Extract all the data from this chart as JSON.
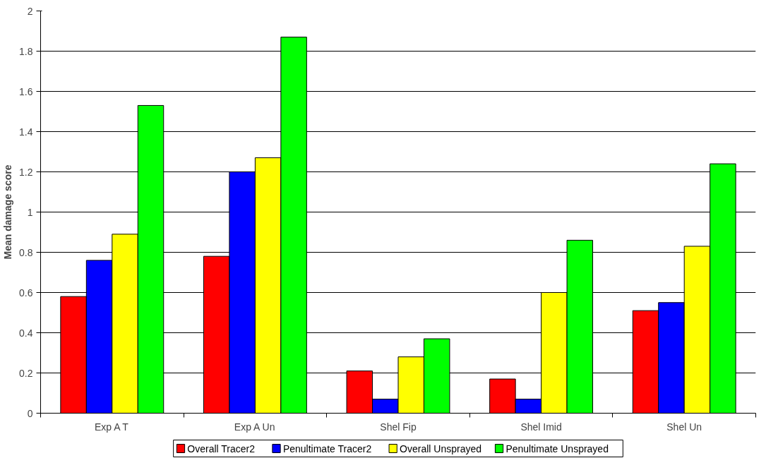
{
  "chart_data": {
    "type": "bar",
    "ylabel": "Mean damage score",
    "categories": [
      "Exp A T",
      "Exp A Un",
      "Shel Fip",
      "Shel Imid",
      "Shel Un"
    ],
    "series": [
      {
        "name": "Overall Tracer2",
        "color": "#ff0000",
        "values": [
          0.58,
          0.78,
          0.21,
          0.17,
          0.51
        ]
      },
      {
        "name": "Penultimate Tracer2",
        "color": "#0000ff",
        "values": [
          0.76,
          1.2,
          0.07,
          0.07,
          0.55
        ]
      },
      {
        "name": "Overall Unsprayed",
        "color": "#ffff00",
        "values": [
          0.89,
          1.27,
          0.28,
          0.6,
          0.83
        ]
      },
      {
        "name": "Penultimate Unsprayed",
        "color": "#00ff00",
        "values": [
          1.53,
          1.87,
          0.37,
          0.86,
          1.24
        ]
      }
    ],
    "ylim": [
      0,
      2
    ],
    "yticks": [
      0,
      0.2,
      0.4,
      0.6,
      0.8,
      1,
      1.2,
      1.4,
      1.6,
      1.8,
      2
    ],
    "grid": "y",
    "legend": "bottom"
  }
}
